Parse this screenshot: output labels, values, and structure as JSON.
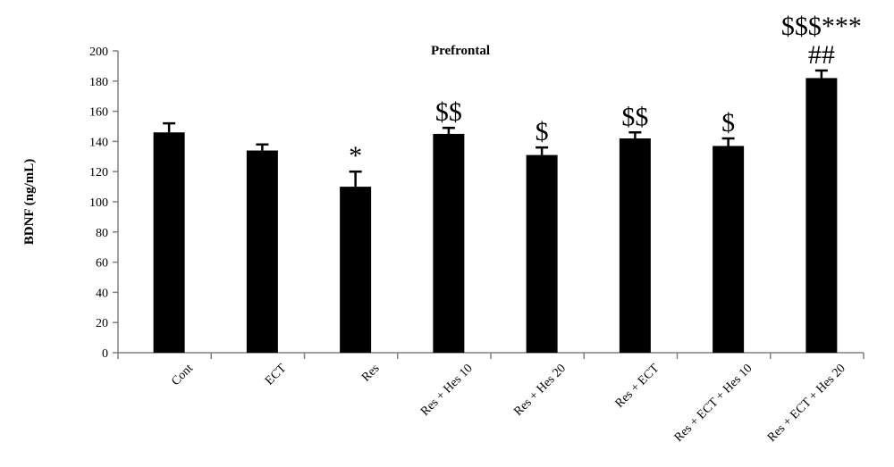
{
  "chart_data": {
    "type": "bar",
    "title": "Prefrontal",
    "xlabel": "",
    "ylabel": "BDNF (ng/mL)",
    "ylim": [
      0,
      200
    ],
    "yticks": [
      0,
      20,
      40,
      60,
      80,
      100,
      120,
      140,
      160,
      180,
      200
    ],
    "categories": [
      "Cont",
      "ECT",
      "Res",
      "Res + Hes 10",
      "Res + Hes 20",
      "Res + ECT",
      "Res + ECT + Hes 10",
      "Res + ECT + Hes 20"
    ],
    "values": [
      146,
      134,
      110,
      145,
      131,
      142,
      137,
      182
    ],
    "error_upper": [
      6,
      4,
      10,
      4,
      5,
      4,
      5,
      5
    ],
    "annotations": [
      {
        "category_index": 2,
        "lines": [
          "*"
        ]
      },
      {
        "category_index": 3,
        "lines": [
          "$$"
        ]
      },
      {
        "category_index": 4,
        "lines": [
          "$"
        ]
      },
      {
        "category_index": 5,
        "lines": [
          "$$"
        ]
      },
      {
        "category_index": 6,
        "lines": [
          "$"
        ]
      },
      {
        "category_index": 7,
        "lines": [
          "$$$***",
          "##"
        ]
      }
    ],
    "grid": false,
    "legend": "none",
    "bar_color": "#000000"
  }
}
